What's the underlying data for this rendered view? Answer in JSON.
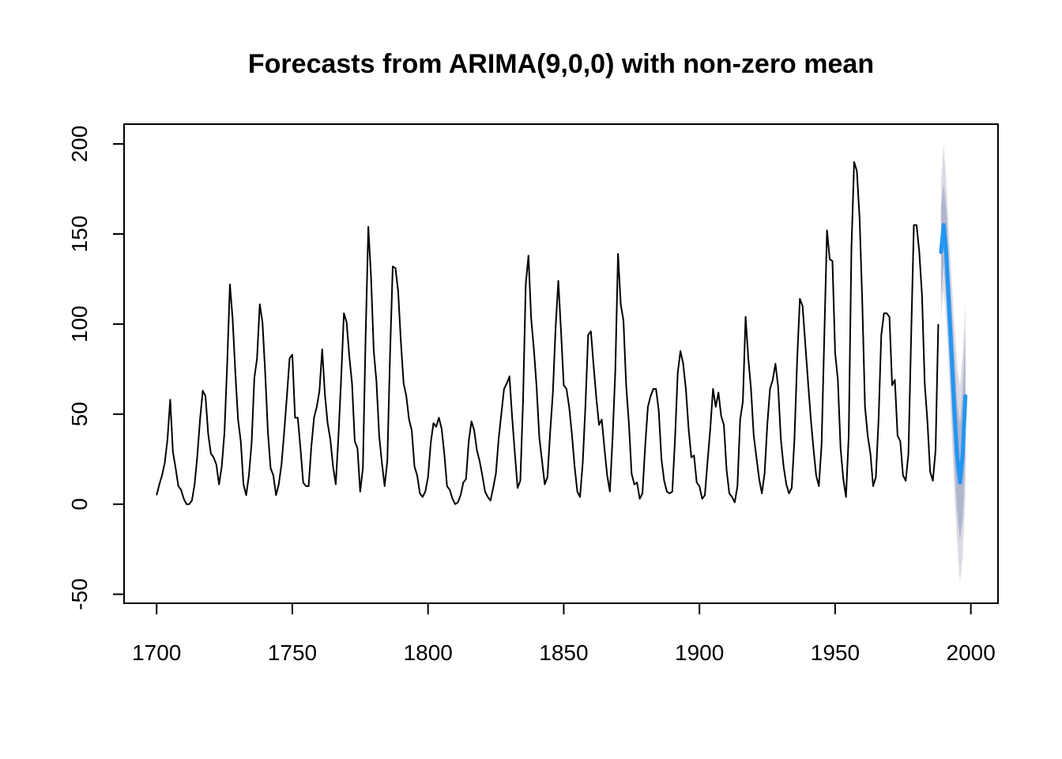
{
  "chart_data": {
    "type": "line",
    "title": "Forecasts from ARIMA(9,0,0) with non-zero mean",
    "xlabel": "",
    "ylabel": "",
    "xlim": [
      1688,
      2010
    ],
    "ylim": [
      -55,
      211
    ],
    "x_ticks": [
      1700,
      1750,
      1800,
      1850,
      1900,
      1950,
      2000
    ],
    "x_tick_labels": [
      "1700",
      "1750",
      "1800",
      "1850",
      "1900",
      "1950",
      "2000"
    ],
    "y_ticks": [
      -50,
      0,
      50,
      100,
      150,
      200
    ],
    "y_tick_labels": [
      "-50",
      "0",
      "50",
      "100",
      "150",
      "200"
    ],
    "grid": false,
    "colors": {
      "history": "#000000",
      "forecast": "#2196f3",
      "band80": "#b1b5ce",
      "band95": "#dbdbe5"
    },
    "series": [
      {
        "role": "history",
        "x_start": 1700,
        "values": [
          5,
          11,
          16,
          23,
          36,
          58,
          29,
          20,
          10,
          8,
          3,
          0,
          0,
          2,
          11,
          27,
          47,
          63,
          60,
          39,
          28,
          26,
          22,
          11,
          21,
          40,
          78,
          122,
          103,
          73,
          47,
          35,
          11,
          5,
          16,
          34,
          70,
          81,
          111,
          101,
          73,
          40,
          20,
          16,
          5,
          11,
          22,
          40,
          60,
          81,
          83,
          48,
          48,
          31,
          12,
          10,
          10,
          32,
          48,
          54,
          63,
          86,
          61,
          45,
          36,
          21,
          11,
          38,
          70,
          106,
          101,
          82,
          67,
          35,
          31,
          7,
          20,
          93,
          154,
          126,
          85,
          68,
          38,
          23,
          10,
          24,
          83,
          132,
          131,
          118,
          90,
          67,
          60,
          47,
          41,
          21,
          16,
          6,
          4,
          7,
          15,
          34,
          45,
          43,
          48,
          42,
          28,
          10,
          8,
          3,
          0,
          1,
          5,
          12,
          14,
          35,
          46,
          41,
          30,
          24,
          16,
          7,
          4,
          2,
          9,
          17,
          36,
          50,
          64,
          67,
          71,
          48,
          28,
          9,
          13,
          57,
          122,
          138,
          103,
          86,
          65,
          37,
          24,
          11,
          15,
          40,
          62,
          98,
          124,
          96,
          66,
          64,
          54,
          39,
          21,
          7,
          4,
          23,
          55,
          94,
          96,
          77,
          59,
          44,
          47,
          31,
          16,
          7,
          37,
          74,
          139,
          111,
          102,
          66,
          45,
          17,
          11,
          12,
          3,
          6,
          32,
          54,
          60,
          64,
          64,
          52,
          25,
          13,
          7,
          6,
          7,
          36,
          73,
          85,
          78,
          64,
          42,
          26,
          27,
          12,
          10,
          3,
          5,
          24,
          42,
          64,
          54,
          62,
          49,
          44,
          19,
          6,
          4,
          1,
          10,
          47,
          57,
          104,
          81,
          64,
          38,
          26,
          14,
          6,
          17,
          44,
          64,
          69,
          78,
          65,
          36,
          21,
          11,
          6,
          9,
          36,
          80,
          114,
          110,
          89,
          68,
          48,
          31,
          16,
          10,
          33,
          93,
          152,
          136,
          135,
          84,
          69,
          31,
          14,
          4,
          38,
          142,
          190,
          185,
          159,
          112,
          54,
          38,
          28,
          10,
          15,
          47,
          94,
          106,
          106,
          104,
          66,
          69,
          38,
          35,
          16,
          13,
          28,
          93,
          155,
          155,
          140,
          116,
          67,
          46,
          18,
          13,
          30,
          100
        ]
      },
      {
        "role": "forecast",
        "x_start": 1989,
        "values": [
          140,
          155,
          138,
          108,
          80,
          50,
          26,
          12,
          28,
          60
        ],
        "lo80": [
          115,
          133,
          113,
          85,
          52,
          20,
          -5,
          -20,
          -8,
          25
        ],
        "hi80": [
          165,
          178,
          163,
          133,
          108,
          82,
          56,
          44,
          64,
          95
        ],
        "lo95": [
          103,
          120,
          100,
          70,
          37,
          5,
          -22,
          -44,
          -28,
          6
        ],
        "hi95": [
          178,
          200,
          178,
          148,
          123,
          98,
          76,
          65,
          84,
          111
        ]
      }
    ]
  }
}
